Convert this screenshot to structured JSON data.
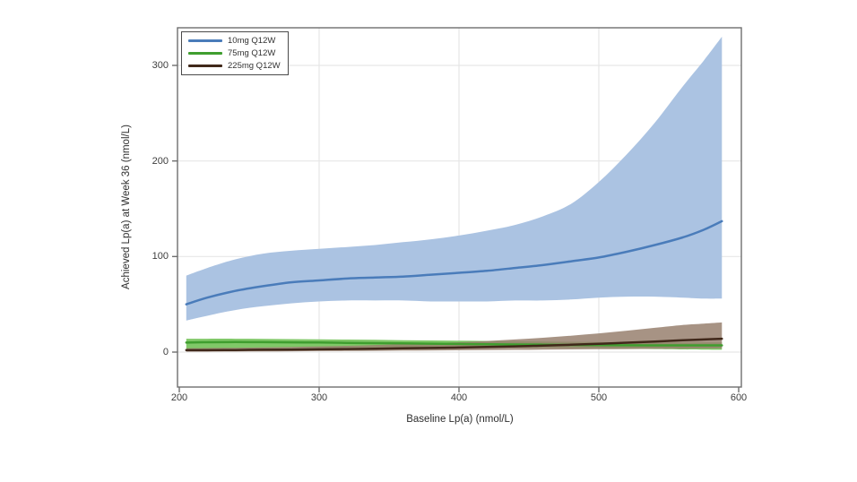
{
  "chart_data": {
    "type": "line",
    "title": "",
    "xlabel": "Baseline Lp(a) (nmol/L)",
    "ylabel": "Achieved Lp(a) at Week 36 (nmol/L)",
    "xlim": [
      200,
      600
    ],
    "ylim": [
      -35,
      340
    ],
    "x_ticks": [
      200,
      300,
      400,
      500,
      600
    ],
    "y_ticks": [
      0,
      100,
      200,
      300
    ],
    "grid": true,
    "legend_position": "top-left-inside",
    "frame_color": "#6e6e6e",
    "grid_color": "#e7e7e7",
    "text_color": "#3d3d3d",
    "x": [
      205,
      220,
      240,
      260,
      280,
      300,
      320,
      340,
      360,
      380,
      400,
      420,
      440,
      460,
      480,
      500,
      520,
      540,
      560,
      575,
      588
    ],
    "series": [
      {
        "name": "10mg Q12W",
        "color": "#4a7cba",
        "band_color": "#abc3e2",
        "band_opacity": 1,
        "y": [
          50,
          57,
          64,
          69,
          73,
          75,
          77,
          78,
          79,
          81,
          83,
          85,
          88,
          91,
          95,
          99,
          105,
          112,
          120,
          128,
          137
        ],
        "upper": [
          80,
          88,
          97,
          103,
          106,
          108,
          110,
          112,
          115,
          118,
          122,
          127,
          133,
          142,
          155,
          178,
          207,
          240,
          278,
          305,
          330
        ],
        "lower": [
          33,
          38,
          44,
          48,
          51,
          53,
          54,
          54,
          54,
          53,
          53,
          53,
          54,
          54,
          55,
          57,
          58,
          58,
          57,
          56,
          56
        ]
      },
      {
        "name": "75mg Q12W",
        "color": "#3f9e2f",
        "band_color": "#80c868",
        "band_opacity": 1,
        "y": [
          10,
          10.3,
          10.5,
          10.4,
          10.2,
          10,
          9.7,
          9.4,
          9.1,
          8.8,
          8.5,
          8.2,
          8,
          7.8,
          7.5,
          7.3,
          7.1,
          7,
          7,
          7,
          7
        ],
        "upper": [
          14,
          14,
          14,
          13.8,
          13.6,
          13.4,
          13.1,
          12.8,
          12.5,
          12.2,
          11.9,
          11.6,
          11.3,
          11,
          10.8,
          10.5,
          10.3,
          10.1,
          10,
          10,
          10
        ],
        "lower": [
          3,
          3.3,
          3.7,
          4,
          4.3,
          4.5,
          4.7,
          4.8,
          4.9,
          5,
          5,
          4.9,
          4.7,
          4.5,
          4.2,
          3.9,
          3.5,
          3.2,
          2.8,
          2.6,
          2.5
        ]
      },
      {
        "name": "225mg Q12W",
        "color": "#40281a",
        "band_color": "#98806e",
        "band_opacity": 0.85,
        "y": [
          2,
          2,
          2.2,
          2.4,
          2.6,
          2.9,
          3.2,
          3.5,
          3.9,
          4.3,
          4.8,
          5.4,
          6,
          6.8,
          7.7,
          8.7,
          9.8,
          11,
          12.4,
          13.2,
          14
        ],
        "upper": [
          4,
          4.2,
          4.5,
          4.9,
          5.4,
          6,
          6.6,
          7.4,
          8.2,
          9.2,
          10.3,
          11.6,
          13.2,
          15,
          17.2,
          19.6,
          22.4,
          25.4,
          28.4,
          29.8,
          31
        ],
        "lower": [
          0.5,
          0.5,
          0.6,
          0.7,
          0.8,
          1,
          1.1,
          1.3,
          1.5,
          1.7,
          1.9,
          2.1,
          2.3,
          2.6,
          2.8,
          3,
          3.2,
          3.4,
          3.6,
          3.8,
          4
        ]
      }
    ]
  }
}
